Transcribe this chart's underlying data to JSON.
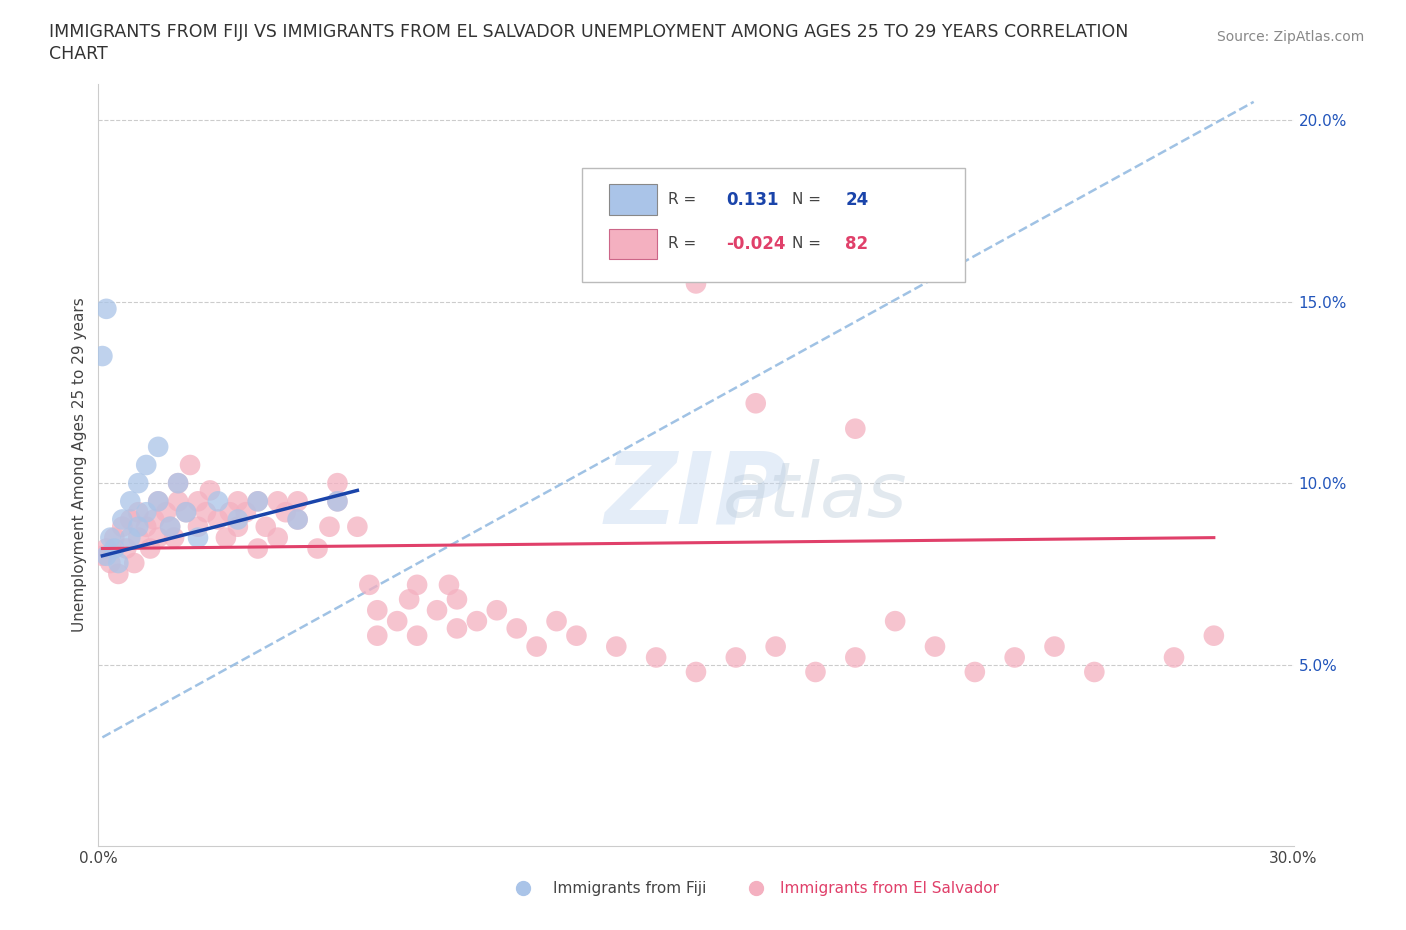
{
  "title_line1": "IMMIGRANTS FROM FIJI VS IMMIGRANTS FROM EL SALVADOR UNEMPLOYMENT AMONG AGES 25 TO 29 YEARS CORRELATION",
  "title_line2": "CHART",
  "source": "Source: ZipAtlas.com",
  "ylabel": "Unemployment Among Ages 25 to 29 years",
  "xlim": [
    0.0,
    0.3
  ],
  "ylim": [
    0.0,
    0.21
  ],
  "fiji_color": "#aac4e8",
  "salvador_color": "#f4b0c0",
  "fiji_line_color": "#1a44aa",
  "salvador_line_color": "#e0406a",
  "dashed_line_color": "#90b8e0",
  "fiji_R": 0.131,
  "fiji_N": 24,
  "salvador_R": -0.024,
  "salvador_N": 82,
  "fiji_x": [
    0.002,
    0.003,
    0.004,
    0.005,
    0.006,
    0.008,
    0.008,
    0.01,
    0.01,
    0.012,
    0.012,
    0.015,
    0.015,
    0.018,
    0.02,
    0.022,
    0.025,
    0.03,
    0.035,
    0.04,
    0.05,
    0.06,
    0.002,
    0.001
  ],
  "fiji_y": [
    0.08,
    0.085,
    0.082,
    0.078,
    0.09,
    0.095,
    0.085,
    0.1,
    0.088,
    0.105,
    0.092,
    0.11,
    0.095,
    0.088,
    0.1,
    0.092,
    0.085,
    0.095,
    0.09,
    0.095,
    0.09,
    0.095,
    0.148,
    0.135
  ],
  "salvador_x": [
    0.001,
    0.002,
    0.003,
    0.004,
    0.005,
    0.006,
    0.007,
    0.008,
    0.009,
    0.01,
    0.01,
    0.012,
    0.013,
    0.014,
    0.015,
    0.015,
    0.017,
    0.018,
    0.019,
    0.02,
    0.02,
    0.022,
    0.023,
    0.025,
    0.025,
    0.027,
    0.028,
    0.03,
    0.032,
    0.033,
    0.035,
    0.035,
    0.037,
    0.04,
    0.04,
    0.042,
    0.045,
    0.045,
    0.047,
    0.05,
    0.05,
    0.055,
    0.058,
    0.06,
    0.06,
    0.065,
    0.068,
    0.07,
    0.07,
    0.075,
    0.078,
    0.08,
    0.08,
    0.085,
    0.088,
    0.09,
    0.09,
    0.095,
    0.1,
    0.105,
    0.11,
    0.115,
    0.12,
    0.13,
    0.14,
    0.15,
    0.16,
    0.17,
    0.18,
    0.19,
    0.2,
    0.21,
    0.22,
    0.23,
    0.24,
    0.25,
    0.27,
    0.28,
    0.13,
    0.15,
    0.165,
    0.19
  ],
  "salvador_y": [
    0.08,
    0.082,
    0.078,
    0.085,
    0.075,
    0.088,
    0.082,
    0.09,
    0.078,
    0.085,
    0.092,
    0.088,
    0.082,
    0.09,
    0.095,
    0.085,
    0.092,
    0.088,
    0.085,
    0.095,
    0.1,
    0.092,
    0.105,
    0.095,
    0.088,
    0.092,
    0.098,
    0.09,
    0.085,
    0.092,
    0.095,
    0.088,
    0.092,
    0.095,
    0.082,
    0.088,
    0.095,
    0.085,
    0.092,
    0.09,
    0.095,
    0.082,
    0.088,
    0.095,
    0.1,
    0.088,
    0.072,
    0.065,
    0.058,
    0.062,
    0.068,
    0.072,
    0.058,
    0.065,
    0.072,
    0.06,
    0.068,
    0.062,
    0.065,
    0.06,
    0.055,
    0.062,
    0.058,
    0.055,
    0.052,
    0.048,
    0.052,
    0.055,
    0.048,
    0.052,
    0.062,
    0.055,
    0.048,
    0.052,
    0.055,
    0.048,
    0.052,
    0.058,
    0.16,
    0.155,
    0.122,
    0.115
  ],
  "fiji_line_x": [
    0.001,
    0.065
  ],
  "fiji_line_y": [
    0.08,
    0.098
  ],
  "salvador_line_x": [
    0.001,
    0.28
  ],
  "salvador_line_y": [
    0.082,
    0.085
  ],
  "dash_line_x": [
    0.001,
    0.29
  ],
  "dash_line_y": [
    0.03,
    0.205
  ]
}
